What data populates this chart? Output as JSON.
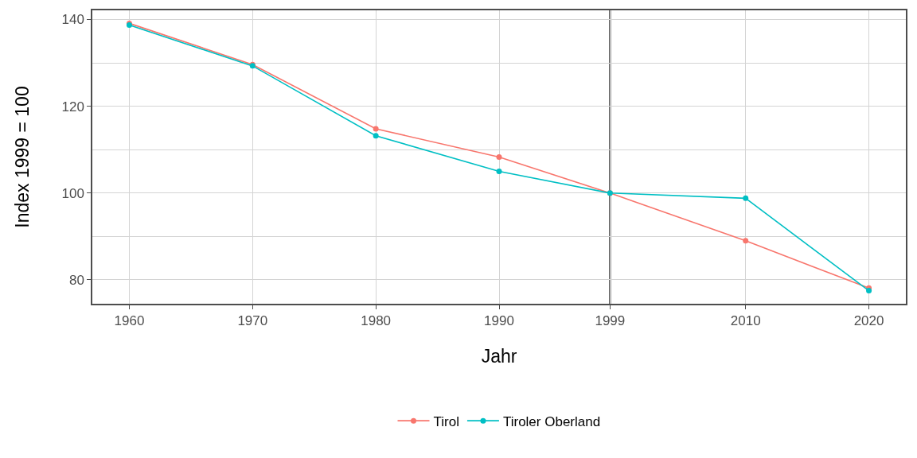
{
  "chart_data": {
    "type": "line",
    "xlabel": "Jahr",
    "ylabel": "Index 1999 = 100",
    "x": [
      1960,
      1970,
      1980,
      1990,
      1999,
      2010,
      2020
    ],
    "series": [
      {
        "name": "Tirol",
        "color": "#f8766d",
        "values": [
          139.1,
          129.6,
          114.8,
          108.3,
          100,
          89.0,
          78.1
        ]
      },
      {
        "name": "Tiroler Oberland",
        "color": "#00bfc4",
        "values": [
          138.7,
          129.3,
          113.2,
          105.0,
          100,
          98.8,
          77.5
        ]
      }
    ],
    "xlim": [
      1957,
      2023
    ],
    "xticks": [
      1960,
      1970,
      1980,
      1990,
      1999,
      2010,
      2020
    ],
    "ylim": [
      74.5,
      142.1
    ],
    "yticks": [
      80,
      {
        "value": 90,
        "label": null
      },
      100,
      {
        "value": 110,
        "label": null
      },
      120,
      {
        "value": 130,
        "label": null
      },
      140
    ],
    "ref_lines": [
      {
        "axis": "x",
        "value": 1999,
        "color": "#000000"
      }
    ],
    "grid": true,
    "legend": "bottom",
    "marker": "circle",
    "line_style": "solid"
  }
}
